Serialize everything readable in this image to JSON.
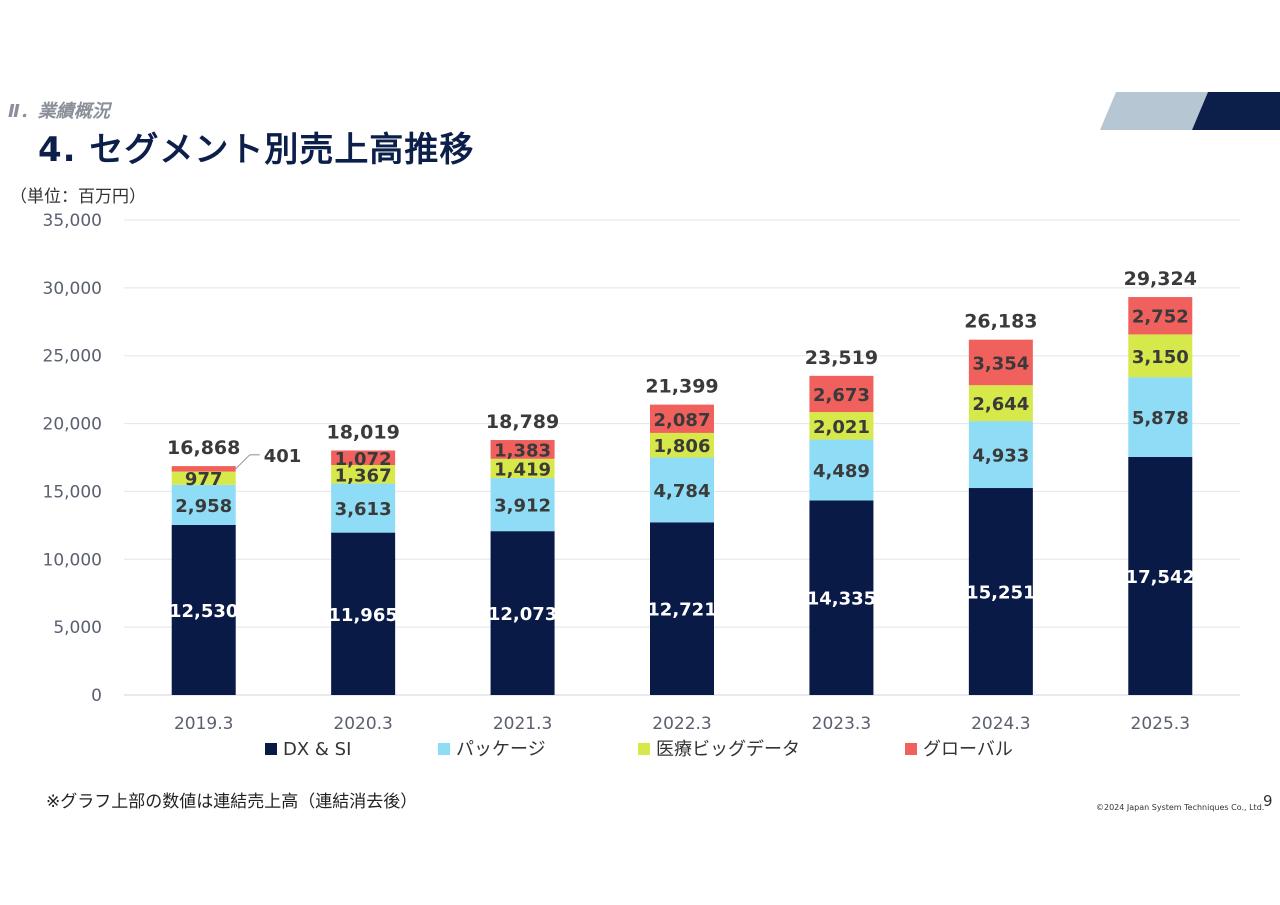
{
  "header": {
    "section_label": "Ⅱ．業績概況",
    "title": "4. セグメント別売上高推移"
  },
  "unit_label": "（単位：百万円）",
  "footnote": "※グラフ上部の数値は連結売上高（連結消去後）",
  "copyright": "©2024 Japan System Techniques Co., Ltd.",
  "page_number": "9",
  "colors": {
    "dx_si": "#0a1a47",
    "package": "#8fdcf7",
    "medical": "#d7e84a",
    "global": "#f0605d",
    "deco_light": "#b7c6d3",
    "deco_dark": "#0c1f4a"
  },
  "chart_data": {
    "type": "bar",
    "stacked": true,
    "categories": [
      "2019.3",
      "2020.3",
      "2021.3",
      "2022.3",
      "2023.3",
      "2024.3",
      "2025.3"
    ],
    "series": [
      {
        "name": "DX & SI",
        "values": [
          12530,
          11965,
          12073,
          12721,
          14335,
          15251,
          17542
        ]
      },
      {
        "name": "パッケージ",
        "values": [
          2958,
          3613,
          3912,
          4784,
          4489,
          4933,
          5878
        ]
      },
      {
        "name": "医療ビッグデータ",
        "values": [
          977,
          1367,
          1419,
          1806,
          2021,
          2644,
          3150
        ]
      },
      {
        "name": "グローバル",
        "values": [
          401,
          1072,
          1383,
          2087,
          2673,
          3354,
          2752
        ]
      }
    ],
    "value_labels": [
      [
        "12,530",
        "11,965",
        "12,073",
        "12,721",
        "14,335",
        "15,251",
        "17,542"
      ],
      [
        "2,958",
        "3,613",
        "3,912",
        "4,784",
        "4,489",
        "4,933",
        "5,878"
      ],
      [
        "977",
        "1,367",
        "1,419",
        "1,806",
        "2,021",
        "2,644",
        "3,150"
      ],
      [
        "401",
        "1,072",
        "1,383",
        "2,087",
        "2,673",
        "3,354",
        "2,752"
      ]
    ],
    "totals": [
      16868,
      18019,
      18789,
      21399,
      23519,
      26183,
      29324
    ],
    "total_labels": [
      "16,868",
      "18,019",
      "18,789",
      "21,399",
      "23,519",
      "26,183",
      "29,324"
    ],
    "ylim": [
      0,
      35000
    ],
    "yticks": [
      0,
      5000,
      10000,
      15000,
      20000,
      25000,
      30000,
      35000
    ],
    "ytick_labels": [
      "0",
      "5,000",
      "10,000",
      "15,000",
      "20,000",
      "25,000",
      "30,000",
      "35,000"
    ],
    "grid": true,
    "legend_position": "bottom"
  }
}
